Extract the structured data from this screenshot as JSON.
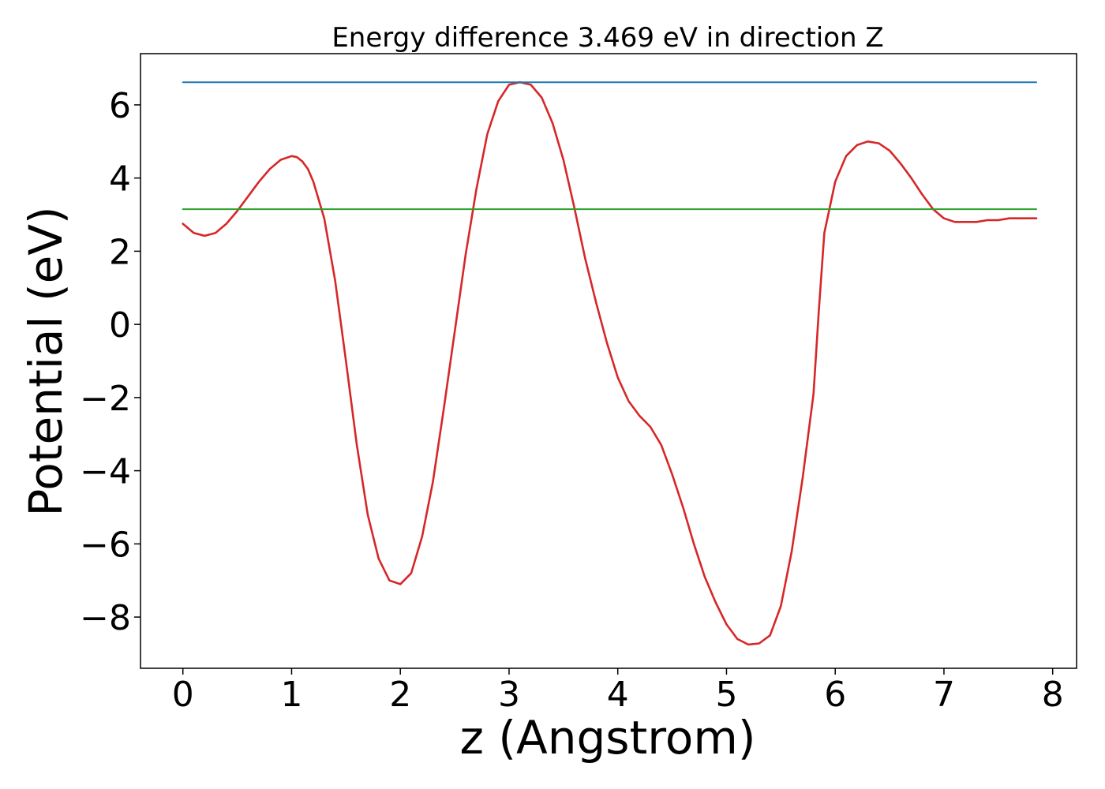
{
  "chart_data": {
    "type": "line",
    "title": "Energy difference 3.469 eV in direction Z",
    "xlabel": "z (Angstrom)",
    "ylabel": "Potential (eV)",
    "xlim": [
      -0.39,
      8.22
    ],
    "ylim": [
      -9.4,
      7.4
    ],
    "x_ticks": [
      0,
      1,
      2,
      3,
      4,
      5,
      6,
      7,
      8
    ],
    "y_ticks": [
      6,
      4,
      2,
      0,
      -2,
      -4,
      -6,
      -8
    ],
    "x_tick_labels": [
      "0",
      "1",
      "2",
      "3",
      "4",
      "5",
      "6",
      "7",
      "8"
    ],
    "y_tick_labels": [
      "6",
      "4",
      "2",
      "0",
      "−2",
      "−4",
      "−6",
      "−8"
    ],
    "grid": false,
    "series": [
      {
        "color": "#d62728",
        "x": [
          0.0,
          0.1,
          0.2,
          0.3,
          0.4,
          0.5,
          0.6,
          0.7,
          0.8,
          0.9,
          1.0,
          1.05,
          1.1,
          1.15,
          1.2,
          1.3,
          1.4,
          1.5,
          1.6,
          1.7,
          1.8,
          1.9,
          2.0,
          2.1,
          2.2,
          2.3,
          2.4,
          2.5,
          2.6,
          2.7,
          2.8,
          2.9,
          3.0,
          3.1,
          3.2,
          3.3,
          3.4,
          3.5,
          3.6,
          3.7,
          3.8,
          3.9,
          4.0,
          4.1,
          4.2,
          4.3,
          4.4,
          4.5,
          4.6,
          4.7,
          4.8,
          4.9,
          5.0,
          5.1,
          5.2,
          5.3,
          5.4,
          5.5,
          5.6,
          5.7,
          5.8,
          5.85,
          5.9,
          6.0,
          6.1,
          6.2,
          6.3,
          6.4,
          6.5,
          6.6,
          6.7,
          6.8,
          6.9,
          7.0,
          7.1,
          7.2,
          7.3,
          7.4,
          7.5,
          7.6,
          7.7,
          7.8,
          7.85
        ],
        "y": [
          2.75,
          2.5,
          2.42,
          2.5,
          2.75,
          3.1,
          3.5,
          3.9,
          4.25,
          4.5,
          4.6,
          4.57,
          4.45,
          4.25,
          3.9,
          2.9,
          1.2,
          -1.0,
          -3.3,
          -5.2,
          -6.4,
          -7.0,
          -7.1,
          -6.8,
          -5.8,
          -4.3,
          -2.3,
          -0.2,
          1.9,
          3.7,
          5.2,
          6.1,
          6.55,
          6.62,
          6.55,
          6.2,
          5.5,
          4.5,
          3.2,
          1.8,
          0.6,
          -0.5,
          -1.45,
          -2.1,
          -2.5,
          -2.8,
          -3.3,
          -4.1,
          -5.0,
          -6.0,
          -6.9,
          -7.6,
          -8.2,
          -8.6,
          -8.75,
          -8.72,
          -8.5,
          -7.7,
          -6.2,
          -4.2,
          -1.9,
          0.4,
          2.5,
          3.9,
          4.6,
          4.9,
          5.0,
          4.95,
          4.75,
          4.4,
          4.0,
          3.55,
          3.15,
          2.9,
          2.8,
          2.8,
          2.8,
          2.85,
          2.85,
          2.9,
          2.9,
          2.9,
          2.9
        ]
      },
      {
        "color": "#1f77b4",
        "x": [
          0.0,
          7.85
        ],
        "y": [
          6.62,
          6.62
        ]
      },
      {
        "color": "#2ca02c",
        "x": [
          0.0,
          7.85
        ],
        "y": [
          3.15,
          3.15
        ]
      }
    ]
  }
}
